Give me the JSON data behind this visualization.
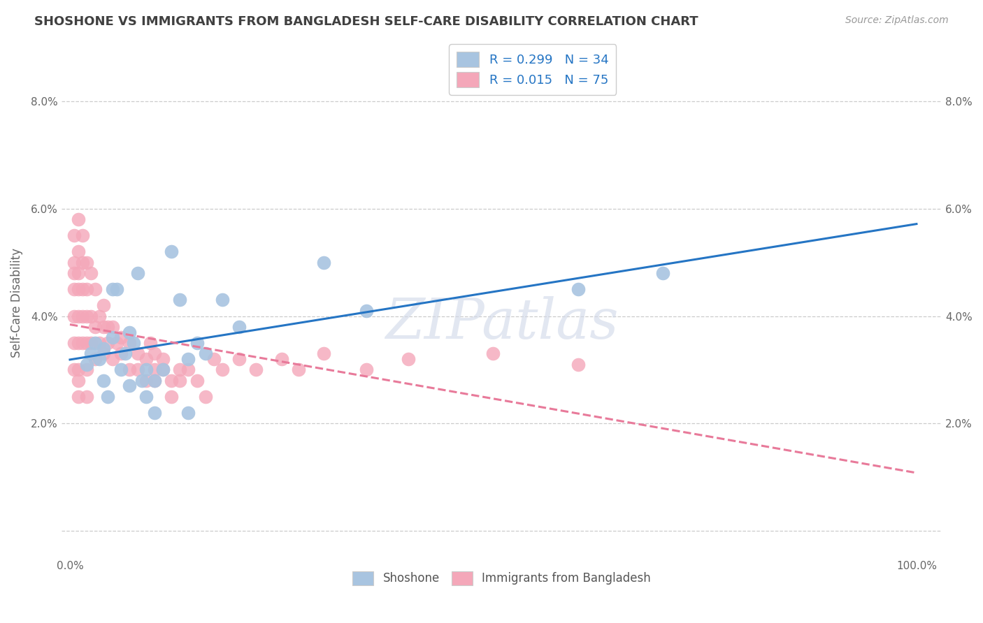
{
  "title": "SHOSHONE VS IMMIGRANTS FROM BANGLADESH SELF-CARE DISABILITY CORRELATION CHART",
  "source_text": "Source: ZipAtlas.com",
  "xlabel_shoshone": "Shoshone",
  "xlabel_bangladesh": "Immigrants from Bangladesh",
  "ylabel": "Self-Care Disability",
  "legend_blue_R": "R = 0.299",
  "legend_blue_N": "N = 34",
  "legend_pink_R": "R = 0.015",
  "legend_pink_N": "N = 75",
  "blue_color": "#a8c4e0",
  "pink_color": "#f4a7b9",
  "blue_line_color": "#2575c4",
  "pink_line_color": "#e87a9a",
  "watermark": "ZIPatlas",
  "shoshone_x": [
    2,
    2.5,
    3,
    3.5,
    4,
    4,
    4.5,
    5,
    5,
    5.5,
    6,
    6.5,
    7,
    7,
    7.5,
    8,
    8.5,
    9,
    9,
    10,
    10,
    11,
    12,
    13,
    14,
    14,
    15,
    16,
    18,
    20,
    30,
    35,
    60,
    70
  ],
  "shoshone_y": [
    3.1,
    3.3,
    3.5,
    3.2,
    3.4,
    2.8,
    2.5,
    3.6,
    4.5,
    4.5,
    3.0,
    3.3,
    3.7,
    2.7,
    3.5,
    4.8,
    2.8,
    3.0,
    2.5,
    2.8,
    2.2,
    3.0,
    5.2,
    4.3,
    3.2,
    2.2,
    3.5,
    3.3,
    4.3,
    3.8,
    5.0,
    4.1,
    4.5,
    4.8
  ],
  "bangladesh_x": [
    0.5,
    0.5,
    0.5,
    0.5,
    0.5,
    0.5,
    0.5,
    1.0,
    1.0,
    1.0,
    1.0,
    1.0,
    1.0,
    1.0,
    1.0,
    1.0,
    1.5,
    1.5,
    1.5,
    1.5,
    1.5,
    2.0,
    2.0,
    2.0,
    2.0,
    2.0,
    2.0,
    2.5,
    2.5,
    2.5,
    3.0,
    3.0,
    3.0,
    3.5,
    3.5,
    4.0,
    4.0,
    4.0,
    4.5,
    4.5,
    5.0,
    5.0,
    5.5,
    6.0,
    6.0,
    7.0,
    7.0,
    8.0,
    8.0,
    9.0,
    9.0,
    9.5,
    10.0,
    10.0,
    10.0,
    11.0,
    11.0,
    12.0,
    12.0,
    13.0,
    13.0,
    14.0,
    15.0,
    16.0,
    17.0,
    18.0,
    20.0,
    22.0,
    25.0,
    27.0,
    30.0,
    35.0,
    40.0,
    50.0,
    60.0
  ],
  "bangladesh_y": [
    5.0,
    5.5,
    4.8,
    4.5,
    4.0,
    3.5,
    3.0,
    5.8,
    5.2,
    4.8,
    4.5,
    4.0,
    3.5,
    3.0,
    2.8,
    2.5,
    5.5,
    5.0,
    4.5,
    4.0,
    3.5,
    5.0,
    4.5,
    4.0,
    3.5,
    3.0,
    2.5,
    4.8,
    4.0,
    3.5,
    4.5,
    3.8,
    3.2,
    4.0,
    3.5,
    4.2,
    3.8,
    3.3,
    3.8,
    3.5,
    3.8,
    3.2,
    3.5,
    3.6,
    3.3,
    3.5,
    3.0,
    3.3,
    3.0,
    3.2,
    2.8,
    3.5,
    3.3,
    3.0,
    2.8,
    3.2,
    3.0,
    2.8,
    2.5,
    3.0,
    2.8,
    3.0,
    2.8,
    2.5,
    3.2,
    3.0,
    3.2,
    3.0,
    3.2,
    3.0,
    3.3,
    3.0,
    3.2,
    3.3,
    3.1
  ],
  "background_color": "#ffffff",
  "grid_color": "#cccccc",
  "title_color": "#404040",
  "label_color": "#808080"
}
